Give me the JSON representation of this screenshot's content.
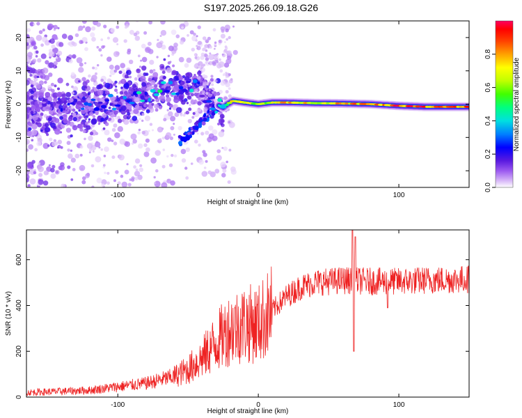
{
  "title": "S197.2025.266.09.18.G26",
  "chart_data": [
    {
      "type": "heatmap",
      "xlabel": "Height of straight line (km)",
      "ylabel": "Frequency (Hz)",
      "xlim": [
        -165,
        150
      ],
      "ylim": [
        -25,
        25
      ],
      "x_ticks": [
        -100,
        0,
        100
      ],
      "y_ticks": [
        -20,
        -10,
        0,
        10,
        20
      ],
      "colorbar": {
        "label": "Normalized spectral amplitude",
        "range": [
          0,
          1
        ],
        "ticks": [
          "0.0",
          "0.2",
          "0.4",
          "0.6",
          "0.8"
        ],
        "colormap": [
          "#ffffff",
          "#d8b8f8",
          "#9b59f0",
          "#5a1ae0",
          "#0000ff",
          "#0080ff",
          "#00e0e0",
          "#00ff80",
          "#40ff00",
          "#c0ff00",
          "#ffff00",
          "#ffa000",
          "#ff4000",
          "#ff0000",
          "#ff0060"
        ]
      },
      "ridge": {
        "x": [
          -165,
          -150,
          -140,
          -130,
          -120,
          -110,
          -100,
          -90,
          -80,
          -70,
          -60,
          -50,
          -45,
          -40,
          -35,
          -30,
          -25,
          -22,
          -18,
          -10,
          0,
          10,
          20,
          40,
          60,
          80,
          100,
          120,
          150
        ],
        "y": [
          -1,
          -1.5,
          -2,
          -1,
          -0.5,
          0,
          1,
          2,
          3,
          4,
          4.5,
          5,
          5,
          4,
          2,
          0,
          -1,
          0,
          1,
          0.5,
          0,
          0.5,
          0.5,
          0.3,
          0.2,
          0,
          -0.5,
          -0.8,
          -0.8
        ],
        "amplitude": [
          0.2,
          0.2,
          0.25,
          0.3,
          0.35,
          0.35,
          0.35,
          0.45,
          0.45,
          0.5,
          0.5,
          0.45,
          0.4,
          0.35,
          0.3,
          0.4,
          0.45,
          0.55,
          0.8,
          0.75,
          0.7,
          0.75,
          0.8,
          0.8,
          0.85,
          0.9,
          0.95,
          0.98,
          0.95
        ]
      },
      "branch": {
        "x": [
          -55,
          -50,
          -45,
          -40,
          -35,
          -30,
          -27
        ],
        "y": [
          -11,
          -9,
          -7,
          -5,
          -3,
          -1,
          0
        ]
      }
    },
    {
      "type": "line",
      "xlabel": "Height of straight line (km)",
      "ylabel": "SNR (10 * v/v)",
      "xlim": [
        -165,
        150
      ],
      "ylim": [
        0,
        730
      ],
      "x_ticks": [
        -100,
        0,
        100
      ],
      "y_ticks": [
        0,
        200,
        400,
        600
      ],
      "series": [
        {
          "name": "SNR",
          "color": "#ee2222",
          "trend_x": [
            -165,
            -140,
            -120,
            -100,
            -80,
            -60,
            -50,
            -40,
            -30,
            -20,
            -10,
            0,
            10,
            20,
            30,
            40,
            60,
            80,
            100,
            120,
            150
          ],
          "trend_y": [
            20,
            25,
            30,
            45,
            60,
            90,
            120,
            170,
            240,
            300,
            320,
            320,
            380,
            440,
            480,
            500,
            510,
            505,
            505,
            510,
            515
          ],
          "spikes": [
            {
              "x": 67,
              "y": 730
            },
            {
              "x": 68,
              "y": 200
            },
            {
              "x": 69,
              "y": 700
            },
            {
              "x": 92,
              "y": 390
            }
          ]
        }
      ]
    }
  ]
}
